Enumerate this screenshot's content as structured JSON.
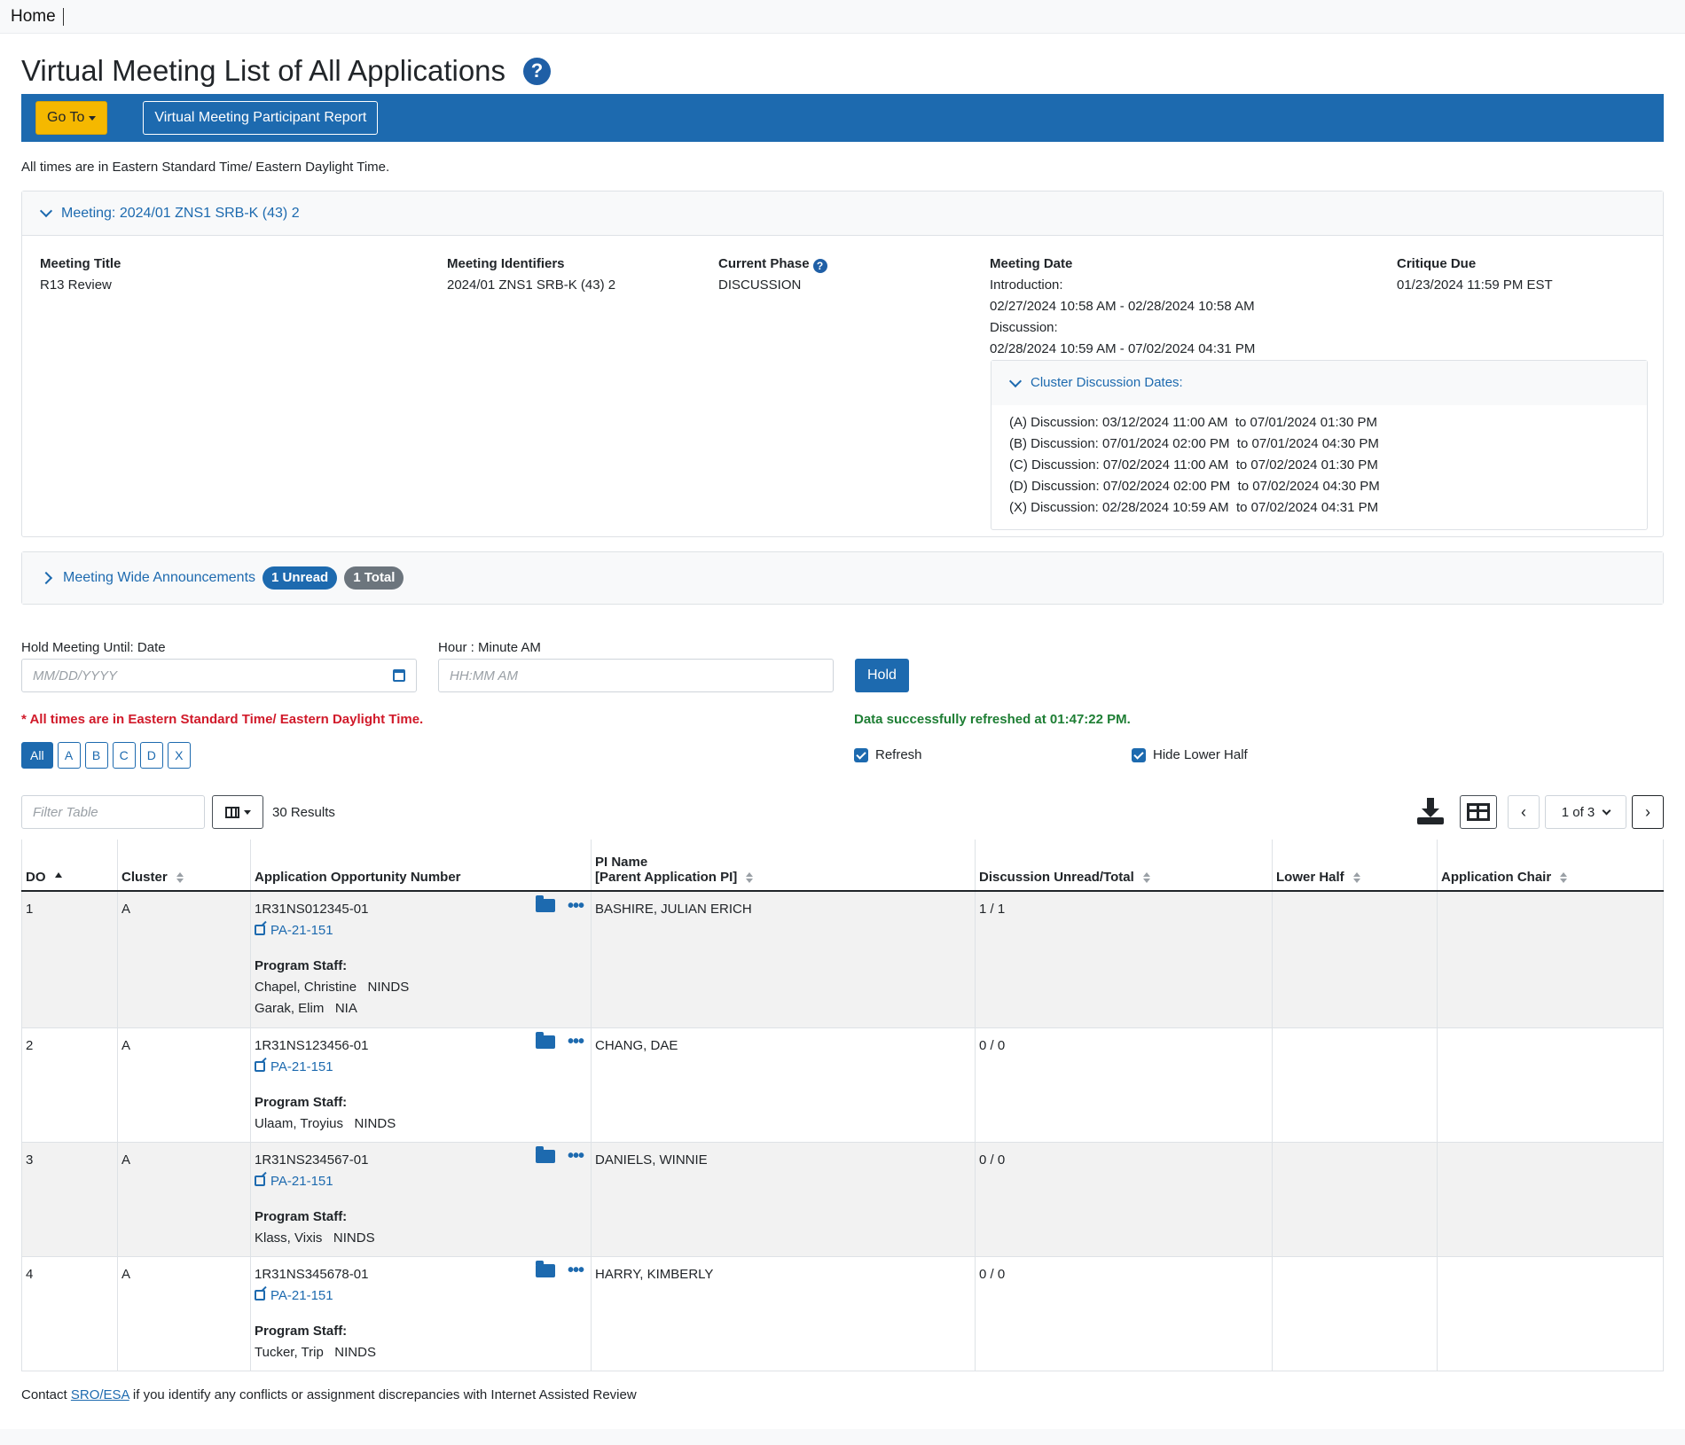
{
  "nav": {
    "home_label": "Home"
  },
  "page": {
    "title": "Virtual Meeting List of All Applications"
  },
  "toolbar": {
    "goto_label": "Go To",
    "report_label": "Virtual Meeting Participant Report"
  },
  "timezone_note": "All times are in Eastern Standard Time/ Eastern Daylight Time.",
  "meeting": {
    "header_label": "Meeting:",
    "header_value": "2024/01 ZNS1 SRB-K (43) 2",
    "title_label": "Meeting Title",
    "title_value": "R13 Review",
    "identifiers_label": "Meeting Identifiers",
    "identifiers_value": "2024/01 ZNS1 SRB-K (43) 2",
    "phase_label": "Current Phase",
    "phase_value": "DISCUSSION",
    "date_label": "Meeting Date",
    "intro_label": "Introduction:",
    "intro_value": "02/27/2024 10:58 AM - 02/28/2024 10:58 AM",
    "discussion_label": "Discussion:",
    "discussion_value": "02/28/2024 10:59 AM - 07/02/2024 04:31 PM",
    "critique_label": "Critique Due",
    "critique_value": "01/23/2024 11:59 PM EST",
    "cluster_header": "Cluster Discussion Dates:",
    "cluster_dates": [
      "(A) Discussion: 03/12/2024 11:00 AM  to 07/01/2024 01:30 PM",
      "(B) Discussion: 07/01/2024 02:00 PM  to 07/01/2024 04:30 PM",
      "(C) Discussion: 07/02/2024 11:00 AM  to 07/02/2024 01:30 PM",
      "(D) Discussion: 07/02/2024 02:00 PM  to 07/02/2024 04:30 PM",
      "(X) Discussion: 02/28/2024 10:59 AM  to 07/02/2024 04:31 PM"
    ]
  },
  "announcements": {
    "label": "Meeting Wide Announcements",
    "unread": "1 Unread",
    "total": "1 Total"
  },
  "hold": {
    "date_label": "Hold Meeting Until: Date",
    "date_placeholder": "MM/DD/YYYY",
    "time_label": "Hour : Minute AM",
    "time_placeholder": "HH:MM AM",
    "button_label": "Hold"
  },
  "notes": {
    "timezone_warning": "* All times are in Eastern Standard Time/ Eastern Daylight Time.",
    "refresh_status": "Data successfully refreshed at 01:47:22 PM."
  },
  "cluster_filters": [
    "All",
    "A",
    "B",
    "C",
    "D",
    "X"
  ],
  "checkboxes": {
    "refresh_label": "Refresh",
    "hide_lower_half_label": "Hide Lower Half"
  },
  "table_toolbar": {
    "filter_placeholder": "Filter Table",
    "results": "30 Results",
    "page_indicator": "1 of 3"
  },
  "table": {
    "headers": {
      "do": "DO",
      "cluster": "Cluster",
      "app_number": "Application Opportunity Number",
      "pi_line1": "PI Name",
      "pi_line2": "[Parent Application PI]",
      "discussion": "Discussion Unread/Total",
      "lower_half": "Lower Half",
      "chair": "Application Chair"
    },
    "staff_label": "Program Staff:",
    "rows": [
      {
        "do": "1",
        "cluster": "A",
        "app_number": "1R31NS012345-01",
        "link": "PA-21-151",
        "pi": "BASHIRE, JULIAN ERICH",
        "discussion": "1 / 1",
        "staff": [
          "Chapel, Christine   NINDS",
          "Garak, Elim   NIA"
        ]
      },
      {
        "do": "2",
        "cluster": "A",
        "app_number": "1R31NS123456-01",
        "link": "PA-21-151",
        "pi": "CHANG, DAE",
        "discussion": "0 / 0",
        "staff": [
          "Ulaam, Troyius   NINDS"
        ]
      },
      {
        "do": "3",
        "cluster": "A",
        "app_number": "1R31NS234567-01",
        "link": "PA-21-151",
        "pi": "DANIELS, WINNIE",
        "discussion": "0 / 0",
        "staff": [
          "Klass, Vixis   NINDS"
        ]
      },
      {
        "do": "4",
        "cluster": "A",
        "app_number": "1R31NS345678-01",
        "link": "PA-21-151",
        "pi": "HARRY, KIMBERLY",
        "discussion": "0 / 0",
        "staff": [
          "Tucker, Trip   NINDS"
        ]
      }
    ]
  },
  "footer": {
    "prefix": "Contact",
    "link": "SRO/ESA",
    "suffix": "if you identify any conflicts or assignment discrepancies with Internet Assisted Review"
  },
  "colors": {
    "primary": "#1d6aaf",
    "accent": "#f5b800",
    "error": "#d11a2a",
    "success": "#1e7e34"
  }
}
